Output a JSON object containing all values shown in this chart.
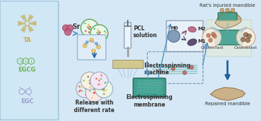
{
  "bg_color": "#d6e8f5",
  "labels": {
    "TA": "TA",
    "EGCG": "EGCG",
    "EGC": "EGC",
    "Sr": "Sr",
    "PCL": "PCL\nsolution",
    "Electrospin_machine": "Electrospinning\nmachine",
    "Release": "Release with\ndifferent rate",
    "Membrane": "Electrospinning\nmembrane",
    "Injured": "Rat's injuried mandible",
    "Repaired": "Repaired mandible",
    "Osteoclast": "Osteoclast",
    "Osteoblast": "Osteoblast",
    "M0": "M0",
    "M1": "M1",
    "M2": "M2"
  },
  "colors": {
    "left_panel_border": "#a0c4dc",
    "panel_box": "#d0e8f5",
    "TA_mol": "#c8a84b",
    "EGCG_mol": "#6ab04c",
    "EGC_mol": "#9b9bc8",
    "Sr_color": "#c06080",
    "arrow_blue": "#4a90c4",
    "arrow_dark": "#2060a0",
    "bead_green": "#50c878",
    "bead_red": "#e05050",
    "bead_yellow": "#f0c060",
    "membrane_teal": "#40a090",
    "bone_color": "#c8a878",
    "macro_blue": "#6090c0",
    "macro_pink": "#c060a0",
    "macro_dark": "#604070",
    "dashed_box": "#8ab8d8"
  },
  "figsize": [
    3.78,
    1.76
  ],
  "dpi": 100
}
